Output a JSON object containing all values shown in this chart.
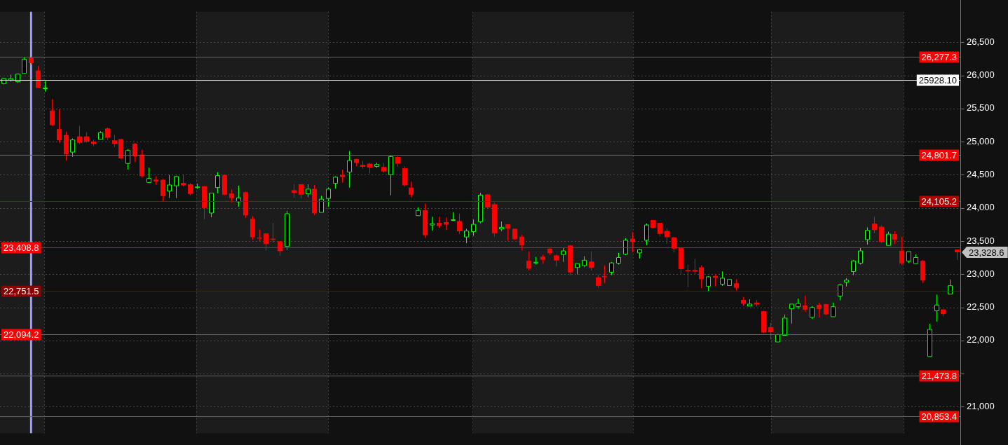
{
  "chart_data": {
    "type": "candlestick",
    "categories": [
      null,
      null,
      null,
      null,
      null,
      null,
      null,
      null,
      null,
      null,
      null,
      null,
      null,
      null,
      null,
      null,
      null,
      null,
      null,
      null,
      null,
      null,
      null,
      null,
      null,
      null,
      null,
      null,
      null,
      null,
      null,
      null,
      null,
      null,
      null,
      null,
      null,
      null,
      null,
      null,
      null,
      null,
      null,
      null,
      null,
      null,
      null,
      null,
      null,
      null,
      null,
      null,
      null,
      null,
      null,
      null,
      null,
      null,
      null,
      null,
      null,
      null,
      null,
      null,
      null,
      null,
      null,
      null,
      null,
      null,
      null,
      null,
      null,
      null,
      null,
      null,
      null,
      null,
      null,
      null,
      null,
      null,
      null,
      null,
      null,
      null,
      null,
      null,
      null,
      null,
      null,
      null,
      null,
      null,
      null,
      null,
      null,
      null,
      null,
      null,
      null,
      null,
      null,
      null,
      null,
      null,
      null,
      null,
      null,
      null,
      null,
      null,
      null,
      null,
      null,
      null,
      null,
      null,
      null,
      null,
      null,
      null,
      null,
      null,
      null,
      null,
      null,
      null,
      null,
      null,
      null,
      null,
      null,
      null,
      null,
      null,
      null,
      null,
      null
    ],
    "ohlc": [
      [
        25875,
        25962,
        25862,
        25952
      ],
      [
        25930,
        26012,
        25905,
        25950
      ],
      [
        25905,
        26029,
        25885,
        26019
      ],
      [
        26030,
        26268,
        26030,
        26245
      ],
      [
        26263,
        26277,
        26163,
        26186
      ],
      [
        26072,
        26142,
        25811,
        25811
      ],
      [
        25800,
        25912,
        25754,
        25810
      ],
      [
        25470,
        25641,
        25239,
        25249
      ],
      [
        25190,
        25490,
        24982,
        25022
      ],
      [
        25099,
        25150,
        24711,
        24808
      ],
      [
        24842,
        25049,
        24771,
        25026
      ],
      [
        25079,
        25240,
        24962,
        24982
      ],
      [
        25079,
        25140,
        24989,
        25002
      ],
      [
        25002,
        25029,
        24929,
        24969
      ],
      [
        25032,
        25159,
        25032,
        25136
      ],
      [
        25200,
        25210,
        25019,
        25059
      ],
      [
        25019,
        25099,
        24919,
        24969
      ],
      [
        25039,
        25039,
        24738,
        24748
      ],
      [
        24671,
        24889,
        24578,
        24866
      ],
      [
        24969,
        24979,
        24691,
        24781
      ],
      [
        24805,
        24879,
        24457,
        24480
      ],
      [
        24384,
        24608,
        24384,
        24444
      ],
      [
        24427,
        24477,
        24350,
        24400
      ],
      [
        24424,
        24437,
        24090,
        24180
      ],
      [
        24256,
        24497,
        24150,
        24346
      ],
      [
        24334,
        24487,
        24150,
        24474
      ],
      [
        24377,
        24497,
        24324,
        24340
      ],
      [
        24357,
        24374,
        24190,
        24210
      ],
      [
        24310,
        24364,
        24287,
        24317
      ],
      [
        24327,
        24327,
        23828,
        23999
      ],
      [
        23923,
        24224,
        23859,
        24224
      ],
      [
        24307,
        24538,
        24220,
        24487
      ],
      [
        24497,
        24497,
        24190,
        24200
      ],
      [
        24217,
        24277,
        24079,
        24149
      ],
      [
        24093,
        24336,
        24019,
        24153
      ],
      [
        24237,
        24247,
        23849,
        23889
      ],
      [
        23835,
        23876,
        23515,
        23558
      ],
      [
        23552,
        23675,
        23498,
        23538
      ],
      [
        23615,
        23615,
        23357,
        23454
      ],
      [
        23535,
        23775,
        23474,
        23518
      ],
      [
        23495,
        23495,
        23277,
        23347
      ],
      [
        23418,
        23956,
        23367,
        23913
      ],
      [
        24267,
        24357,
        24150,
        24230
      ],
      [
        24357,
        24357,
        24140,
        24200
      ],
      [
        24213,
        24357,
        24160,
        24284
      ],
      [
        24287,
        24347,
        23889,
        23919
      ],
      [
        23933,
        24183,
        23933,
        24133
      ],
      [
        24143,
        24307,
        24016,
        24284
      ],
      [
        24371,
        24477,
        24290,
        24464
      ],
      [
        24497,
        24578,
        24380,
        24467
      ],
      [
        24541,
        24859,
        24307,
        24716
      ],
      [
        24738,
        24745,
        24631,
        24681
      ],
      [
        24648,
        24708,
        24591,
        24621
      ],
      [
        24668,
        24678,
        24521,
        24611
      ],
      [
        24625,
        24685,
        24605,
        24655
      ],
      [
        24618,
        24678,
        24535,
        24551
      ],
      [
        24501,
        24800,
        24190,
        24775
      ],
      [
        24768,
        24778,
        24621,
        24668
      ],
      [
        24598,
        24628,
        24320,
        24340
      ],
      [
        24307,
        24397,
        24160,
        24200
      ],
      [
        23883,
        24006,
        23883,
        23963
      ],
      [
        23966,
        24066,
        23548,
        23588
      ],
      [
        23742,
        23866,
        23658,
        23762
      ],
      [
        23775,
        23866,
        23698,
        23728
      ],
      [
        23785,
        23853,
        23665,
        23748
      ],
      [
        23812,
        23936,
        23812,
        23822
      ],
      [
        23802,
        23913,
        23608,
        23648
      ],
      [
        23562,
        23685,
        23467,
        23652
      ],
      [
        23642,
        23825,
        23578,
        23752
      ],
      [
        23792,
        24227,
        23768,
        24194
      ],
      [
        24204,
        24204,
        23989,
        24006
      ],
      [
        24056,
        24083,
        23568,
        23618
      ],
      [
        23682,
        23795,
        23648,
        23708
      ],
      [
        23752,
        23752,
        23505,
        23688
      ],
      [
        23685,
        23685,
        23515,
        23528
      ],
      [
        23565,
        23595,
        23357,
        23437
      ],
      [
        23201,
        23344,
        23056,
        23086
      ],
      [
        23170,
        23261,
        23146,
        23180
      ],
      [
        23264,
        23294,
        23156,
        23217
      ],
      [
        23384,
        23394,
        23287,
        23317
      ],
      [
        23284,
        23294,
        23116,
        23207
      ],
      [
        23297,
        23394,
        23187,
        23351
      ],
      [
        23434,
        23434,
        22986,
        23026
      ],
      [
        23100,
        23160,
        22996,
        23160
      ],
      [
        23130,
        23271,
        23106,
        23211
      ],
      [
        23191,
        23344,
        23056,
        23096
      ],
      [
        22953,
        22996,
        22795,
        22825
      ],
      [
        22973,
        23133,
        22863,
        22956
      ],
      [
        23030,
        23184,
        22986,
        23170
      ],
      [
        23167,
        23324,
        23146,
        23251
      ],
      [
        23301,
        23542,
        23287,
        23512
      ],
      [
        23535,
        23635,
        23327,
        23487
      ],
      [
        23321,
        23381,
        23237,
        23371
      ],
      [
        23512,
        23765,
        23437,
        23742
      ],
      [
        23816,
        23816,
        23688,
        23698
      ],
      [
        23775,
        23775,
        23568,
        23608
      ],
      [
        23655,
        23695,
        23457,
        23558
      ],
      [
        23555,
        23565,
        23327,
        23387
      ],
      [
        23394,
        23394,
        22996,
        23076
      ],
      [
        23063,
        23143,
        22802,
        23046
      ],
      [
        23063,
        23234,
        23003,
        23040
      ],
      [
        23103,
        23133,
        22786,
        22926
      ],
      [
        22819,
        22970,
        22735,
        22960
      ],
      [
        22973,
        22996,
        22815,
        22946
      ],
      [
        22850,
        23043,
        22825,
        22940
      ],
      [
        22829,
        22920,
        22829,
        22920
      ],
      [
        22863,
        22923,
        22735,
        22795
      ],
      [
        22612,
        22659,
        22522,
        22555
      ],
      [
        22519,
        22622,
        22519,
        22549
      ],
      [
        22572,
        22609,
        22512,
        22542
      ],
      [
        22441,
        22451,
        22110,
        22120
      ],
      [
        22201,
        22268,
        22013,
        22123
      ],
      [
        21977,
        22100,
        21977,
        22087
      ],
      [
        22077,
        22391,
        22077,
        22338
      ],
      [
        22478,
        22549,
        22254,
        22549
      ],
      [
        22509,
        22632,
        22478,
        22559
      ],
      [
        22529,
        22672,
        22434,
        22464
      ],
      [
        22348,
        22519,
        22324,
        22498
      ],
      [
        22539,
        22569,
        22344,
        22475
      ],
      [
        22549,
        22549,
        22384,
        22394
      ],
      [
        22358,
        22572,
        22358,
        22509
      ],
      [
        22669,
        22850,
        22605,
        22840
      ],
      [
        22880,
        22940,
        22815,
        22910
      ],
      [
        23040,
        23214,
        22986,
        23201
      ],
      [
        23167,
        23401,
        23146,
        23351
      ],
      [
        23522,
        23705,
        23447,
        23662
      ],
      [
        23765,
        23866,
        23618,
        23665
      ],
      [
        23715,
        23735,
        23467,
        23487
      ],
      [
        23434,
        23642,
        23427,
        23605
      ],
      [
        23605,
        23648,
        23454,
        23522
      ],
      [
        23354,
        23565,
        23140,
        23163
      ],
      [
        23197,
        23341,
        23167,
        23341
      ],
      [
        23160,
        23301,
        23160,
        23251
      ],
      [
        23201,
        23214,
        22866,
        22906
      ],
      [
        21756,
        22251,
        21756,
        22167
      ],
      [
        22448,
        22692,
        22284,
        22535
      ],
      [
        22468,
        22468,
        22364,
        22398
      ],
      [
        22699,
        22920,
        22699,
        22826
      ],
      [
        23371,
        23371,
        23214,
        23330
      ]
    ],
    "ylim": [
      20600,
      26960
    ],
    "yticks": [
      {
        "value": 21000,
        "label": "21,000"
      },
      {
        "value": 21500,
        "label": null
      },
      {
        "value": 22000,
        "label": "22,000"
      },
      {
        "value": 22500,
        "label": "22,500"
      },
      {
        "value": 23000,
        "label": "23,000"
      },
      {
        "value": 23500,
        "label": "23,500"
      },
      {
        "value": 24000,
        "label": "24,000"
      },
      {
        "value": 24500,
        "label": "24,500"
      },
      {
        "value": 25000,
        "label": "25,000"
      },
      {
        "value": 25500,
        "label": "25,500"
      },
      {
        "value": 26000,
        "label": "26,000"
      },
      {
        "value": 26500,
        "label": "26,500"
      }
    ],
    "grid": "y",
    "tick_labels": "y",
    "ref_lines": [
      {
        "axis": "y",
        "value": 26277.3,
        "label": "26,277.3"
      },
      {
        "axis": "y",
        "value": 25928.1,
        "label": "25928.10",
        "color": "#ffffff"
      },
      {
        "axis": "y",
        "value": 24801.7,
        "label": "24,801.7"
      },
      {
        "axis": "y",
        "value": 24105.2,
        "label": "24,105.2",
        "color": "#b00000"
      },
      {
        "axis": "y",
        "value": 23408.8,
        "label": "23,408.8",
        "color": "#ff0000"
      },
      {
        "axis": "y",
        "value": 22751.5,
        "label": "22,751.5",
        "color": "#8b0000"
      },
      {
        "axis": "y",
        "value": 22094.2,
        "label": "22,094.2"
      },
      {
        "axis": "y",
        "value": 21473.8,
        "label": "21,473.8"
      },
      {
        "axis": "y",
        "value": 20853.4,
        "label": "20,853.4"
      }
    ],
    "annotations": [
      "23,328.6"
    ]
  }
}
